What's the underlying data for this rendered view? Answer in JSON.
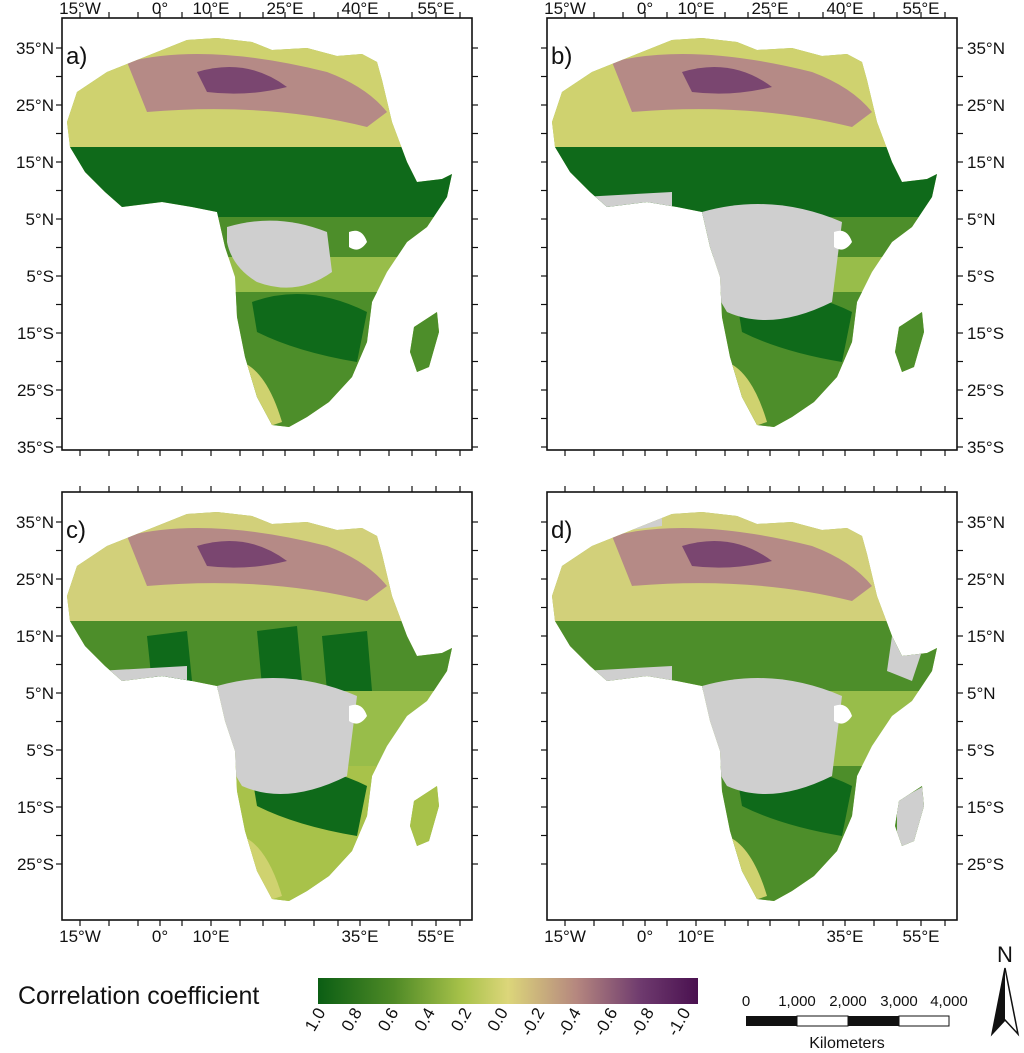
{
  "panels": [
    {
      "letter": "a)",
      "top_labels": [
        "15°W",
        "0°",
        "10°E",
        "25°E",
        "40°E",
        "55°E"
      ],
      "bottom_labels": [],
      "left_labels": [
        "35°N",
        "25°N",
        "15°N",
        "5°N",
        "5°S",
        "15°S",
        "25°S",
        "35°S"
      ],
      "right_labels": [],
      "pattern": "a"
    },
    {
      "letter": "b)",
      "top_labels": [
        "15°W",
        "0°",
        "10°E",
        "25°E",
        "40°E",
        "55°E"
      ],
      "bottom_labels": [],
      "left_labels": [],
      "right_labels": [
        "35°N",
        "25°N",
        "15°N",
        "5°N",
        "5°S",
        "15°S",
        "25°S",
        "35°S"
      ],
      "pattern": "b"
    },
    {
      "letter": "c)",
      "top_labels": [],
      "bottom_labels": [
        "15°W",
        "0°",
        "10°E",
        "35°E",
        "55°E"
      ],
      "left_labels": [
        "35°N",
        "25°N",
        "15°N",
        "5°N",
        "5°S",
        "15°S",
        "25°S"
      ],
      "right_labels": [],
      "pattern": "c"
    },
    {
      "letter": "d)",
      "top_labels": [],
      "bottom_labels": [
        "15°W",
        "0°",
        "10°E",
        "35°E",
        "55°E"
      ],
      "left_labels": [],
      "right_labels": [
        "35°N",
        "25°N",
        "15°N",
        "5°N",
        "5°S",
        "15°S",
        "25°S"
      ],
      "pattern": "d"
    }
  ],
  "legend": {
    "title": "Correlation coefficient",
    "ticks": [
      "1.0",
      "0.8",
      "0.6",
      "0.4",
      "0.2",
      "0.0",
      "-0.2",
      "-0.4",
      "-0.6",
      "-0.8",
      "-1.0"
    ],
    "colors": [
      "#0b5e14",
      "#4f8a26",
      "#a8c24a",
      "#dcd67a",
      "#b5877f",
      "#6e3a6e",
      "#4a1150"
    ]
  },
  "scale_bar": {
    "labels": [
      "0",
      "1,000",
      "2,000",
      "3,000",
      "4,000"
    ],
    "unit": "Kilometers"
  },
  "north_arrow": {
    "letter": "N"
  },
  "colors": {
    "dark_green": "#0f6a1a",
    "mid_green": "#4d8e2a",
    "light_green": "#98bd4a",
    "yellow_green": "#cfd26f",
    "mauve": "#b58a86",
    "purple": "#7a4670",
    "no_data_gray": "#cfcfcf"
  }
}
